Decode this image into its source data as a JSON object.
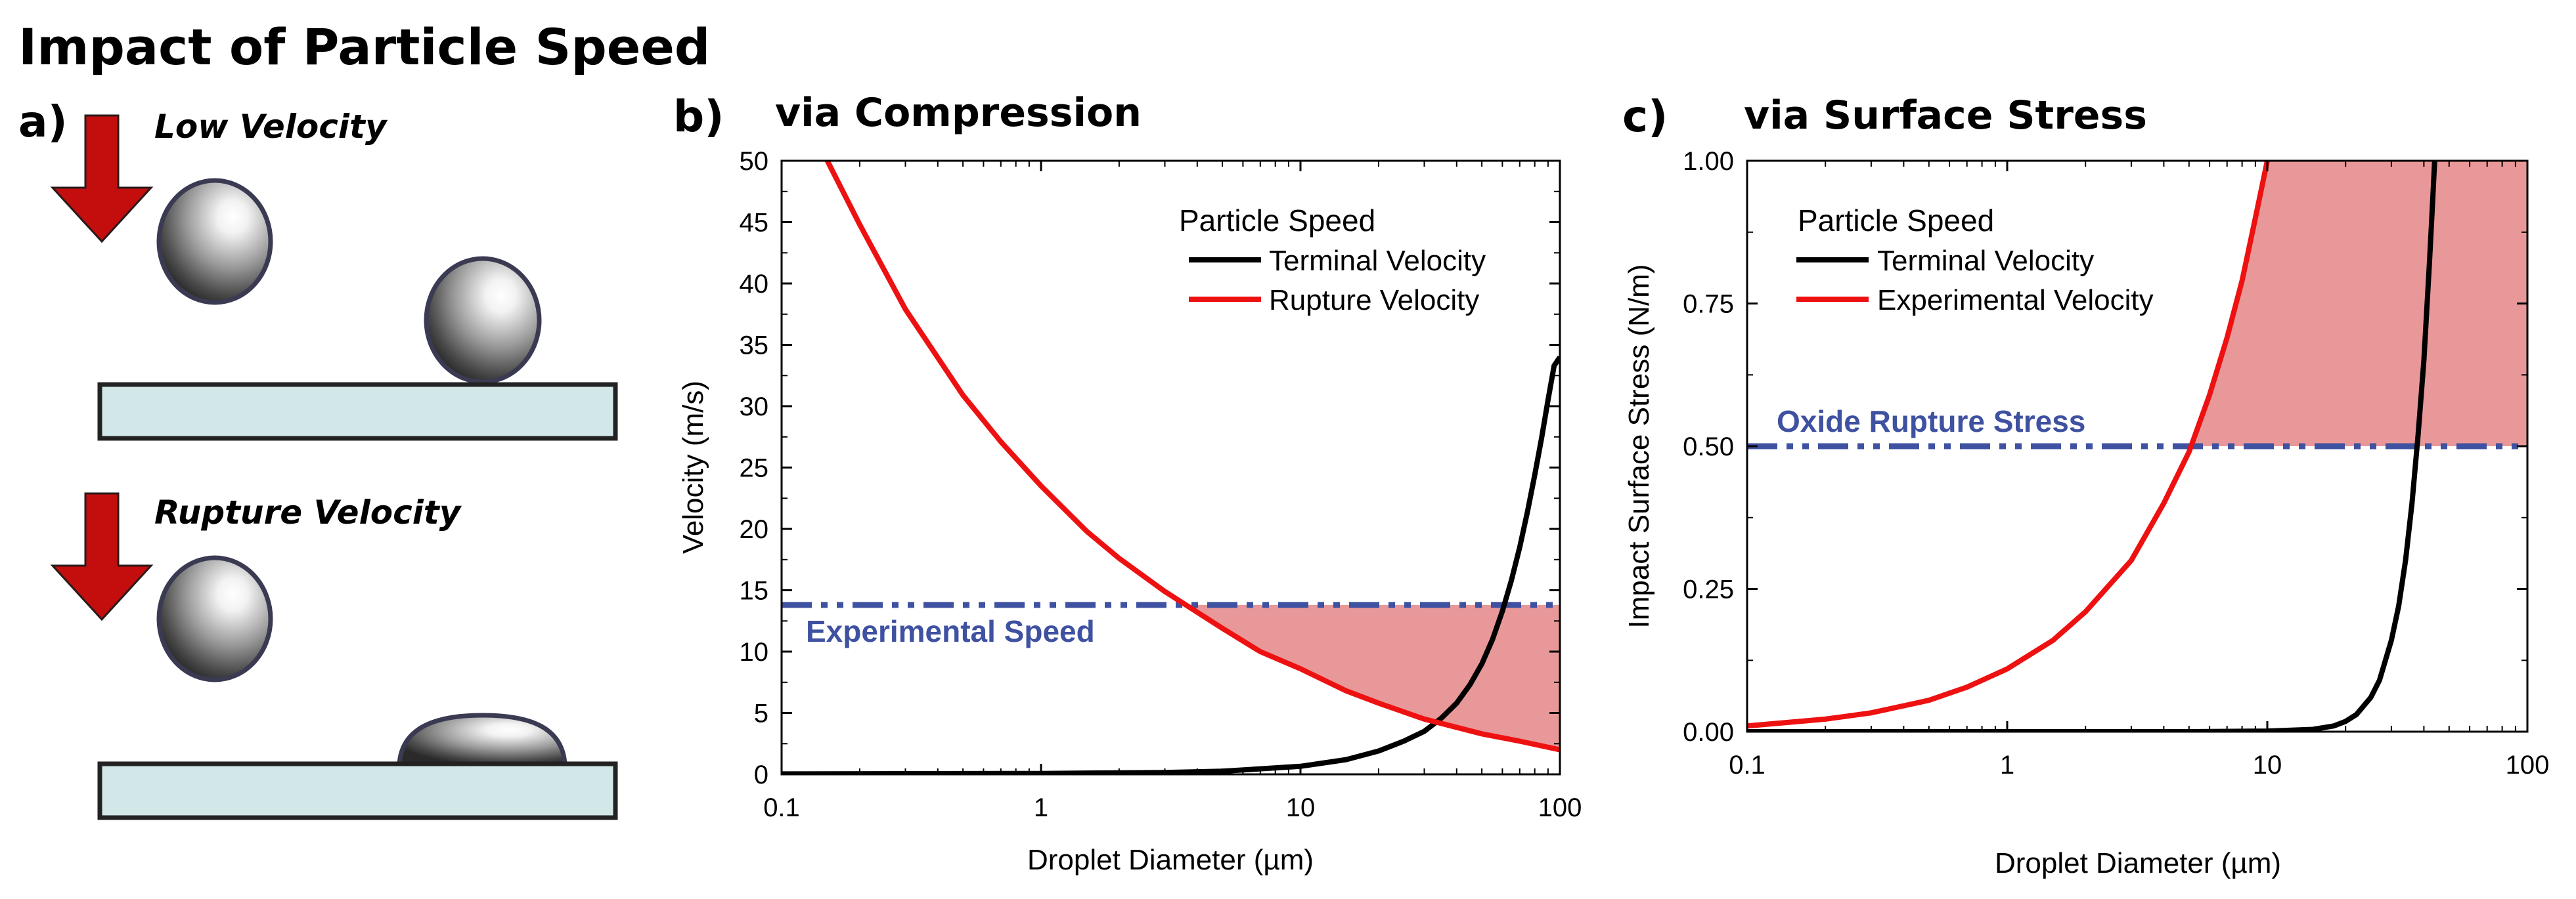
{
  "figure": {
    "main_title": "Impact of Particle Speed",
    "panel_a": {
      "label": "a)",
      "scenario_low": "Low Velocity",
      "scenario_rupture": "Rupture Velocity"
    }
  },
  "colors": {
    "terminal": "#000000",
    "rupture": "#ee1111",
    "threshold": "#3f51a1",
    "fill": "#e89898",
    "arrow": "#c40d0d",
    "substrate": "#d2e7e8"
  },
  "chart_data": [
    {
      "type": "line",
      "panel_label": "b)",
      "title": "via Compression",
      "xlabel": "Droplet Diameter (µm)",
      "ylabel": "Velocity (m/s)",
      "xscale": "log",
      "xlim": [
        0.1,
        100
      ],
      "ylim": [
        0,
        50
      ],
      "xticks": [
        0.1,
        1,
        10,
        100
      ],
      "xtick_labels": [
        "0.1",
        "1",
        "10",
        "100"
      ],
      "yticks": [
        0,
        5,
        10,
        15,
        20,
        25,
        30,
        35,
        40,
        45,
        50
      ],
      "ytick_labels": [
        "0",
        "5",
        "10",
        "15",
        "20",
        "25",
        "30",
        "35",
        "40",
        "45",
        "50"
      ],
      "legend_title": "Particle Speed",
      "legend_position": "top-right",
      "series": [
        {
          "name": "Terminal Velocity",
          "color_key": "terminal",
          "x": [
            0.1,
            1,
            3,
            5,
            10,
            15,
            20,
            25,
            30,
            35,
            40,
            45,
            50,
            55,
            60,
            65,
            70,
            75,
            80,
            85,
            90,
            95,
            100
          ],
          "y": [
            0.03,
            0.07,
            0.15,
            0.25,
            0.65,
            1.2,
            1.9,
            2.7,
            3.5,
            4.6,
            5.8,
            7.3,
            9.0,
            11.0,
            13.3,
            15.8,
            18.5,
            21.4,
            24.4,
            27.4,
            30.5,
            33.3,
            34.0
          ]
        },
        {
          "name": "Rupture Velocity",
          "color_key": "rupture",
          "x": [
            0.15,
            0.2,
            0.3,
            0.5,
            0.7,
            1,
            1.5,
            2,
            3,
            5,
            7,
            10,
            15,
            20,
            30,
            50,
            70,
            100
          ],
          "y": [
            50,
            44.8,
            37.9,
            30.9,
            27.1,
            23.5,
            19.8,
            17.6,
            14.9,
            11.9,
            10.0,
            8.6,
            6.8,
            5.8,
            4.5,
            3.3,
            2.7,
            2.0
          ]
        }
      ],
      "threshold": {
        "label": "Experimental Speed",
        "value": 13.8
      },
      "shaded_region": "between threshold and Rupture Velocity where Rupture Velocity < threshold"
    },
    {
      "type": "line",
      "panel_label": "c)",
      "title": "via Surface Stress",
      "xlabel": "Droplet Diameter (µm)",
      "ylabel": "Impact Surface Stress (N/m)",
      "xscale": "log",
      "xlim": [
        0.1,
        100
      ],
      "ylim": [
        0,
        1
      ],
      "xticks": [
        0.1,
        1,
        10,
        100
      ],
      "xtick_labels": [
        "0.1",
        "1",
        "10",
        "100"
      ],
      "yticks": [
        0,
        0.25,
        0.5,
        0.75,
        1.0
      ],
      "ytick_labels": [
        "0.00",
        "0.25",
        "0.50",
        "0.75",
        "1.00"
      ],
      "legend_title": "Particle Speed",
      "legend_position": "top-left",
      "series": [
        {
          "name": "Terminal Velocity",
          "color_key": "terminal",
          "x": [
            0.1,
            1,
            5,
            10,
            15,
            18,
            20,
            22,
            25,
            27,
            30,
            32,
            34,
            36,
            38,
            40,
            42,
            43,
            44
          ],
          "y": [
            0.0,
            0.0,
            0.0,
            0.001,
            0.004,
            0.01,
            0.018,
            0.03,
            0.06,
            0.09,
            0.16,
            0.22,
            0.3,
            0.4,
            0.52,
            0.65,
            0.82,
            0.91,
            1.0
          ]
        },
        {
          "name": "Experimental Velocity",
          "color_key": "rupture",
          "x": [
            0.1,
            0.2,
            0.3,
            0.5,
            0.7,
            1,
            1.5,
            2,
            3,
            4,
            5,
            6,
            7,
            8,
            9,
            10
          ],
          "y": [
            0.01,
            0.022,
            0.033,
            0.055,
            0.078,
            0.11,
            0.16,
            0.21,
            0.3,
            0.4,
            0.49,
            0.59,
            0.69,
            0.79,
            0.9,
            1.0
          ]
        }
      ],
      "threshold": {
        "label": "Oxide Rupture Stress",
        "value": 0.5
      },
      "shaded_region": "above threshold and right of Experimental Velocity"
    }
  ]
}
